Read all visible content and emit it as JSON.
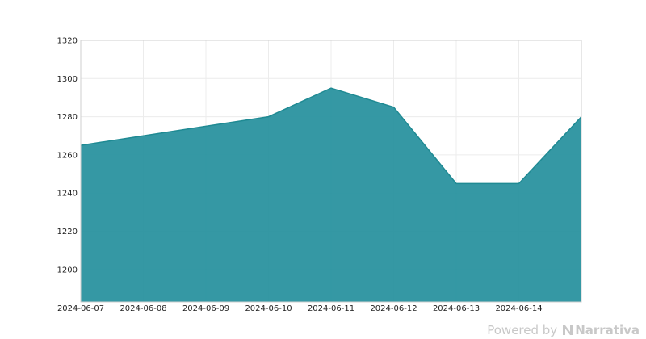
{
  "chart_data": {
    "type": "area",
    "x": [
      "2024-06-07",
      "2024-06-08",
      "2024-06-09",
      "2024-06-10",
      "2024-06-11",
      "2024-06-12",
      "2024-06-13",
      "2024-06-14",
      "2024-06-15"
    ],
    "x_tick_labels": [
      "2024-06-07",
      "2024-06-08",
      "2024-06-09",
      "2024-06-10",
      "2024-06-11",
      "2024-06-12",
      "2024-06-13",
      "2024-06-14"
    ],
    "values": [
      1265,
      1270,
      1275,
      1280,
      1295,
      1285,
      1245,
      1245,
      1280
    ],
    "y_ticks": [
      1200,
      1220,
      1240,
      1260,
      1280,
      1300,
      1320
    ],
    "ylim": [
      1183,
      1320
    ],
    "grid": true,
    "colors": {
      "fill": "#2a929f",
      "line": "#1f8a93"
    }
  },
  "watermark": {
    "prefix": "Powered by",
    "brand": "Narrativa"
  }
}
